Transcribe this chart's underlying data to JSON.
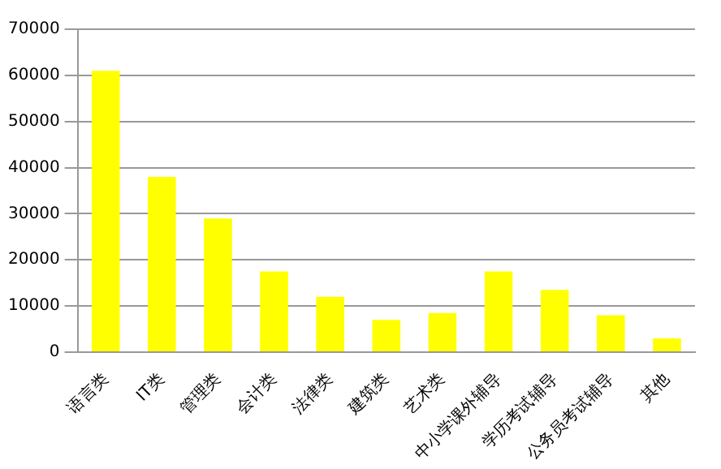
{
  "chart_data": {
    "type": "bar",
    "categories": [
      "语言类",
      "IT类",
      "管理类",
      "会计类",
      "法律类",
      "建筑类",
      "艺术类",
      "中小学课外辅导",
      "学历考试辅导",
      "公务员考试辅导",
      "其他"
    ],
    "values": [
      61000,
      38000,
      29000,
      17500,
      12000,
      7000,
      8500,
      17500,
      13500,
      8000,
      3000
    ],
    "color": "#ffff00",
    "ylim": [
      0,
      70000
    ],
    "yticks": [
      0,
      10000,
      20000,
      30000,
      40000,
      50000,
      60000,
      70000
    ],
    "grid": "y"
  }
}
